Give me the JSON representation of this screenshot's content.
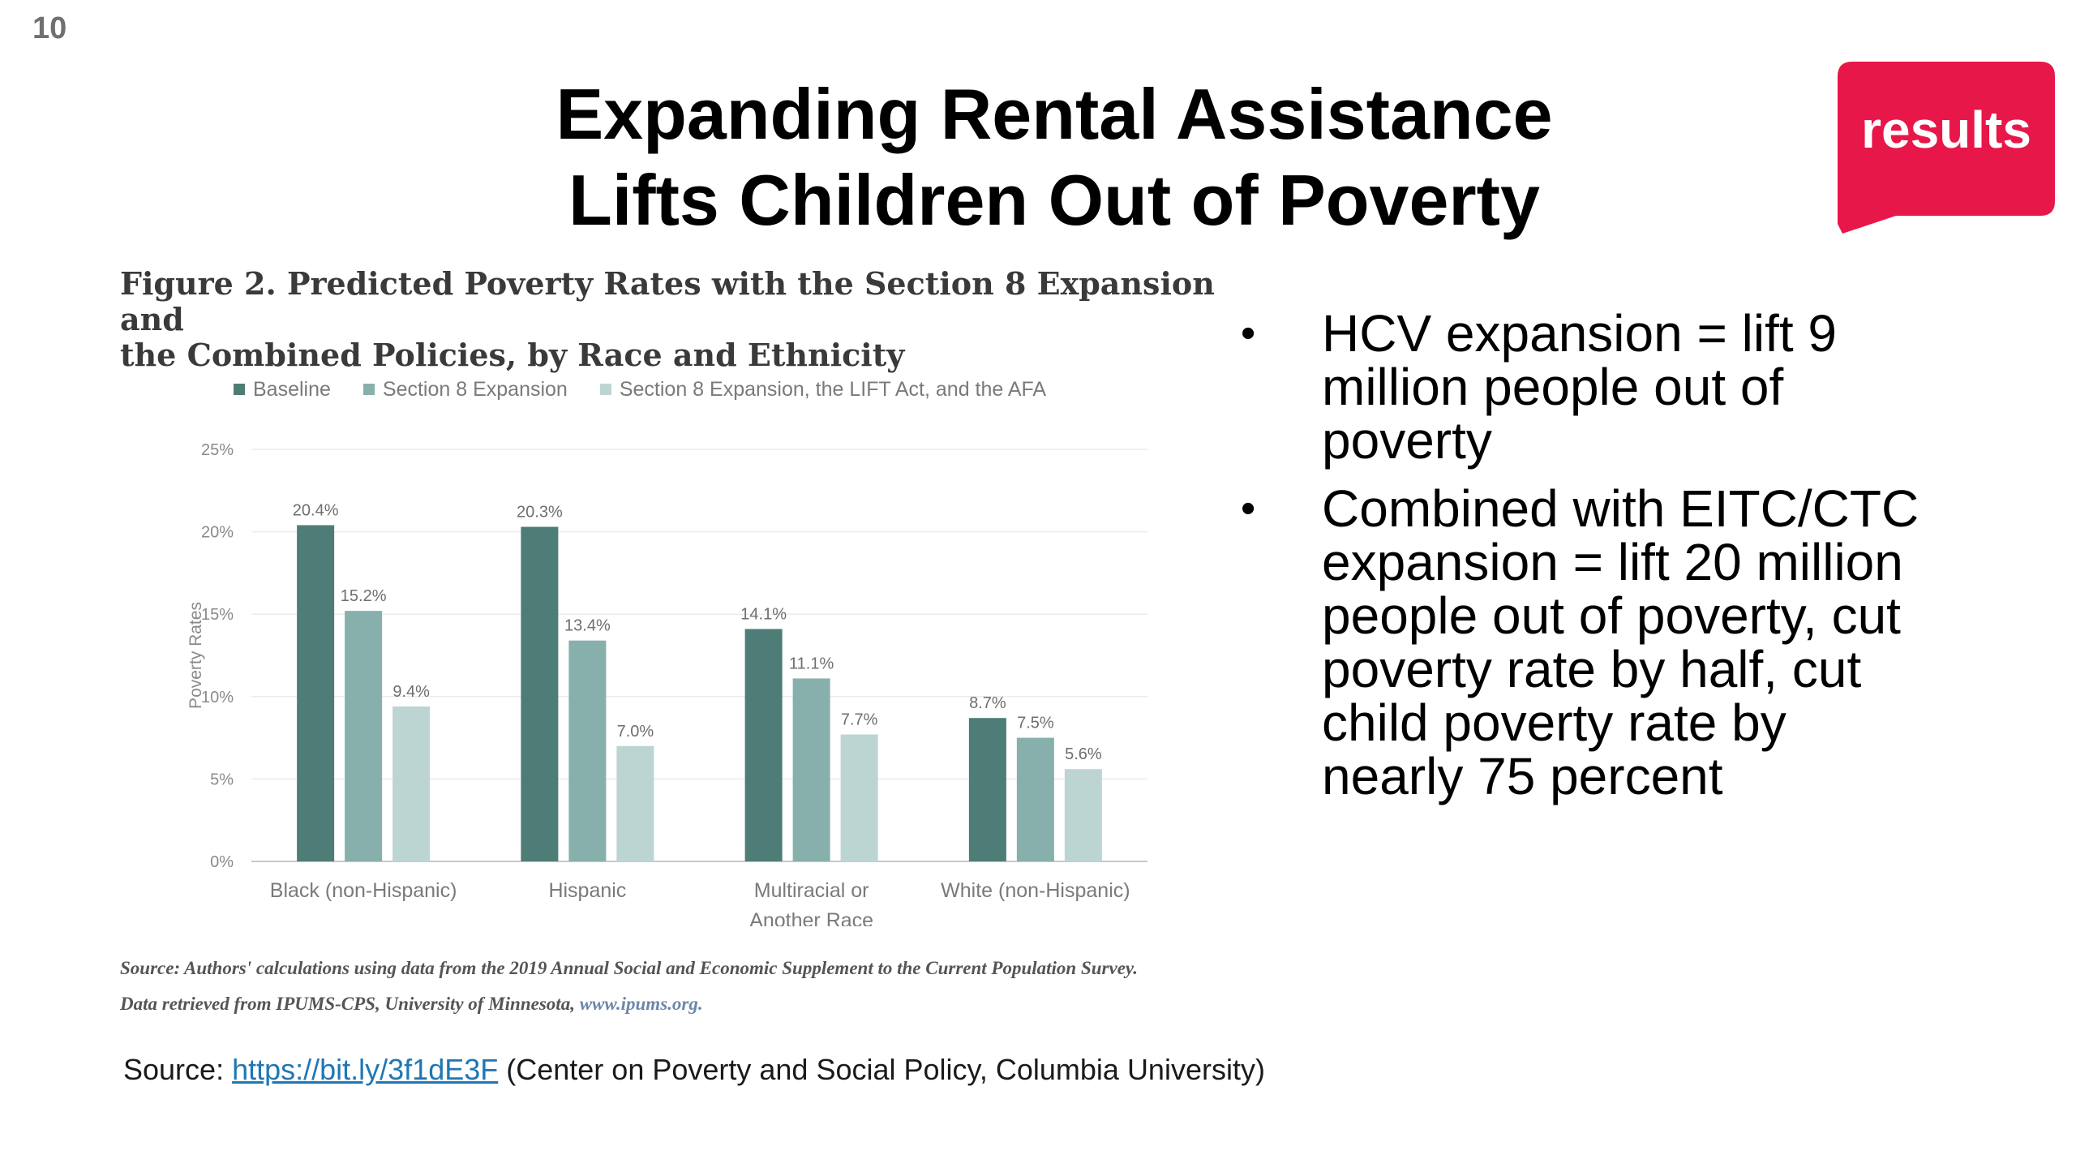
{
  "slide_number": "10",
  "title": {
    "line1": "Expanding Rental Assistance",
    "line2": "Lifts Children Out of Poverty"
  },
  "logo": {
    "text": "results",
    "color": "#e8174a"
  },
  "figure": {
    "caption_line1": "Figure 2. Predicted Poverty Rates with the Section 8 Expansion and",
    "caption_line2": "the Combined Policies, by Race and Ethnicity",
    "source_line1_label": "Source:",
    "source_line1_text": " Authors' calculations using data from the 2019 Annual Social and Economic Supplement to the Current Population Survey.",
    "source_line2_text": "Data retrieved from IPUMS-CPS, University of Minnesota, ",
    "source_line2_url": "www.ipums.org."
  },
  "chart_data": {
    "type": "bar",
    "ylabel": "Poverty Rates",
    "ylim": [
      0,
      25
    ],
    "yticks": [
      "0%",
      "5%",
      "10%",
      "15%",
      "20%",
      "25%"
    ],
    "categories": [
      "Black (non-Hispanic)",
      "Hispanic",
      "Multiracial or Another Race",
      "White (non-Hispanic)"
    ],
    "category_lines": [
      [
        "Black (non-Hispanic)"
      ],
      [
        "Hispanic"
      ],
      [
        "Multiracial or",
        "Another Race"
      ],
      [
        "White (non-Hispanic)"
      ]
    ],
    "series": [
      {
        "name": "Baseline",
        "color": "#4e7c76",
        "values": [
          20.4,
          20.3,
          14.1,
          8.7
        ],
        "labels": [
          "20.4%",
          "20.3%",
          "14.1%",
          "8.7%"
        ]
      },
      {
        "name": "Section 8 Expansion",
        "color": "#87b0ac",
        "values": [
          15.2,
          13.4,
          11.1,
          7.5
        ],
        "labels": [
          "15.2%",
          "13.4%",
          "11.1%",
          "7.5%"
        ]
      },
      {
        "name": "Section 8 Expansion, the LIFT Act, and the AFA",
        "color": "#bcd5d3",
        "values": [
          9.4,
          7.0,
          7.7,
          5.6
        ],
        "labels": [
          "9.4%",
          "7.0%",
          "7.7%",
          "5.6%"
        ]
      }
    ],
    "grid": true,
    "legend_position": "top"
  },
  "bullets": [
    "HCV expansion = lift 9 million people out of poverty",
    "Combined with EITC/CTC expansion = lift 20 million people out of poverty, cut poverty rate by half, cut child poverty rate by nearly 75 percent"
  ],
  "bullet_glyph": "•",
  "source": {
    "label": "Source: ",
    "link_text": "https://bit.ly/3f1dE3F",
    "suffix": " (Center on Poverty and Social Policy, Columbia University)"
  }
}
